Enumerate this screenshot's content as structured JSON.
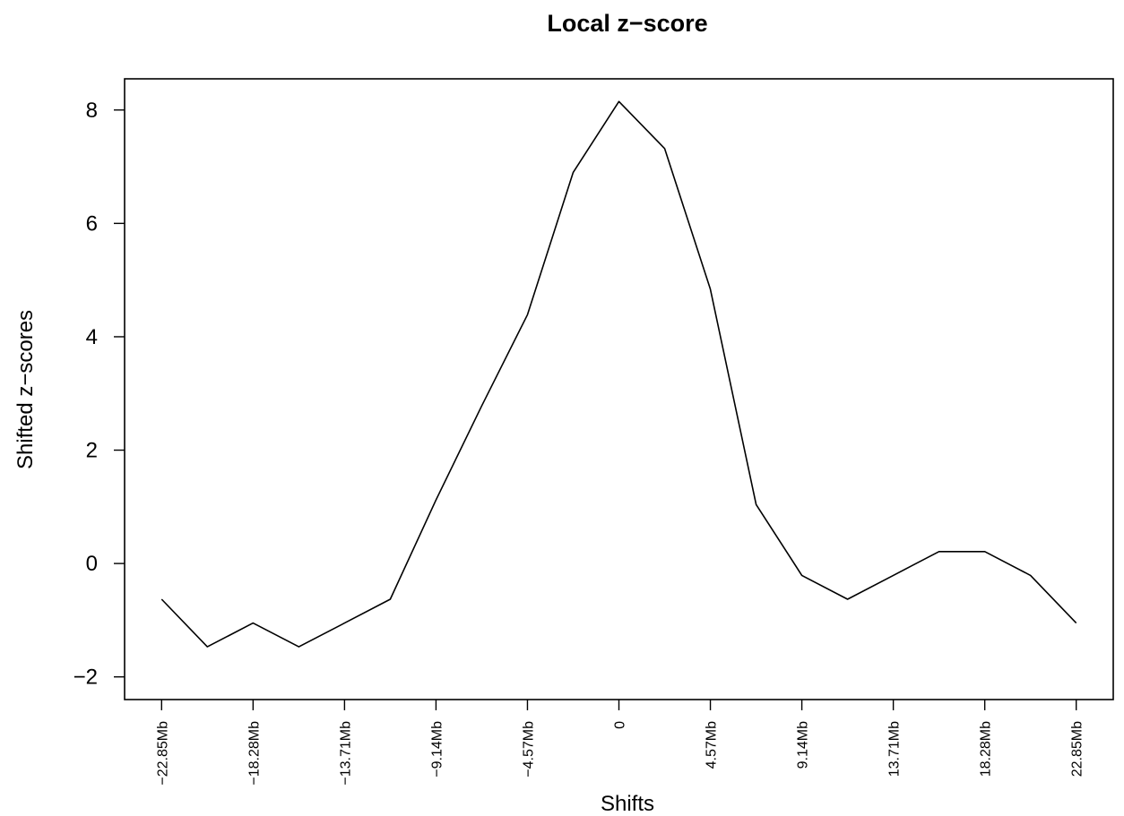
{
  "chart_data": {
    "type": "line",
    "title": "Local z−score",
    "xlabel": "Shifts",
    "ylabel": "Shifted z−scores",
    "x_tick_labels": [
      "−22.85Mb",
      "−18.28Mb",
      "−13.71Mb",
      "−9.14Mb",
      "−4.57Mb",
      "0",
      "4.57Mb",
      "9.14Mb",
      "13.71Mb",
      "18.28Mb",
      "22.85Mb"
    ],
    "x_tick_values": [
      -22.85,
      -18.28,
      -13.71,
      -9.14,
      -4.57,
      0,
      4.57,
      9.14,
      13.71,
      18.28,
      22.85
    ],
    "y_ticks": [
      -2,
      0,
      2,
      4,
      6,
      8
    ],
    "y_tick_labels": [
      "−2",
      "0",
      "2",
      "4",
      "6",
      "8"
    ],
    "xlim": [
      -24.7,
      24.7
    ],
    "ylim": [
      -2.4,
      8.55
    ],
    "grid": false,
    "series": [
      {
        "x": [
          -22.85,
          -20.565,
          -18.28,
          -15.995,
          -13.71,
          -11.425,
          -9.14,
          -6.855,
          -4.57,
          -2.285,
          0,
          2.285,
          4.57,
          6.855,
          9.14,
          11.425,
          13.71,
          15.995,
          18.28,
          20.565,
          22.85
        ],
        "values": [
          -0.63,
          -1.47,
          -1.05,
          -1.47,
          -1.05,
          -0.63,
          1.12,
          2.78,
          4.39,
          6.9,
          8.15,
          7.32,
          4.84,
          1.04,
          -0.21,
          -0.63,
          -0.21,
          0.21,
          0.21,
          -0.21,
          -1.05
        ]
      }
    ]
  }
}
